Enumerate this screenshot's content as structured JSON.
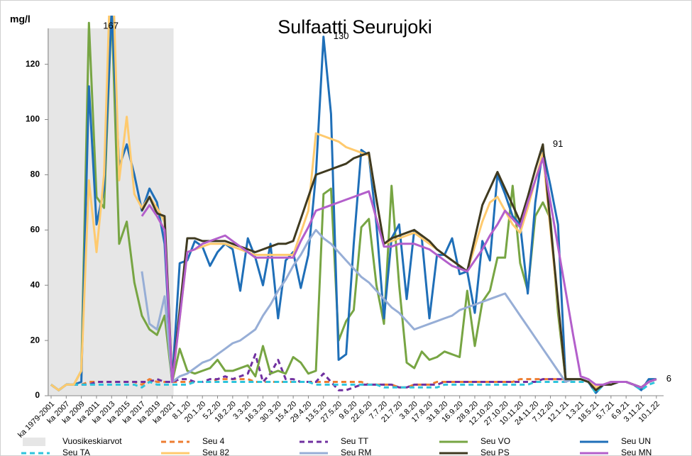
{
  "chart_data": {
    "type": "line",
    "title": "Sulfaatti Seurujoki",
    "y_label": "mg/l",
    "categories": [
      "ka 1979-2001",
      null,
      "ka 2007",
      null,
      "ka 2009",
      null,
      "ka 2011",
      null,
      "ka 2013",
      null,
      "ka 2015",
      null,
      "ka 2017",
      null,
      "ka 2019",
      null,
      "ka 2021",
      null,
      "8.1.20",
      null,
      "20.1.20",
      null,
      "5.2.20",
      null,
      "18.2.20",
      null,
      "3.3.20",
      null,
      "16.3.20",
      null,
      "30.3.20",
      null,
      "15.4.20",
      null,
      "29.4.20",
      null,
      "13.5.20",
      null,
      "27.5.20",
      null,
      "9.6.20",
      null,
      "22.6.20",
      null,
      "7.7.20",
      null,
      "21.7.20",
      null,
      "3.8.20",
      null,
      "17.8.20",
      null,
      "31.8.20",
      null,
      "16.9.20",
      null,
      "28.9.20",
      null,
      "12.10.20",
      null,
      "27.10.20",
      null,
      "10.11.20",
      null,
      "24.11.20",
      null,
      "7.12.20",
      null,
      "12.1.21",
      null,
      "1.3.21",
      null,
      "18.5.21",
      null,
      "5.7.21",
      null,
      "6.9.21",
      null,
      "3.11.21",
      null,
      "10.1.22"
    ],
    "ylim": [
      0,
      133
    ],
    "yticks": [
      0,
      20,
      40,
      60,
      80,
      100,
      120
    ],
    "shade": {
      "name": "Vuosikeskiarvot",
      "color": "#e6e6e6",
      "from": "ka 1979-2001",
      "to": "ka 2021"
    },
    "series": [
      {
        "name": "Seu 4",
        "color": "#ed7d31",
        "dashed": true,
        "values": [
          4,
          2,
          4,
          4,
          4,
          5,
          5,
          5,
          5,
          5,
          5,
          5,
          4,
          6,
          5,
          5,
          5,
          5,
          5,
          5,
          5,
          5,
          6,
          6,
          6,
          6,
          6,
          5,
          5,
          5,
          5,
          5,
          5,
          5,
          5,
          5,
          5,
          5,
          5,
          5,
          5,
          5,
          4,
          4,
          4,
          4,
          3,
          3,
          4,
          4,
          4,
          5,
          5,
          5,
          5,
          5,
          5,
          5,
          5,
          5,
          5,
          5,
          6,
          6,
          6,
          6,
          6,
          6,
          6,
          6,
          6,
          5,
          2,
          4,
          5,
          5,
          5,
          4,
          3,
          5,
          6
        ]
      },
      {
        "name": "Seu TT",
        "color": "#7030a0",
        "dashed": true,
        "values": [
          4,
          2,
          4,
          4,
          4,
          4,
          5,
          5,
          5,
          5,
          5,
          5,
          5,
          5,
          6,
          5,
          5,
          6,
          6,
          5,
          5,
          6,
          6,
          7,
          6,
          7,
          8,
          15,
          5,
          8,
          13,
          6,
          6,
          5,
          5,
          5,
          8,
          5,
          2,
          2,
          3,
          4,
          4,
          4,
          4,
          4,
          3,
          3,
          4,
          4,
          4,
          4,
          5,
          5,
          5,
          5,
          5,
          5,
          5,
          5,
          5,
          5,
          5,
          5,
          5,
          6,
          6,
          6,
          6,
          6,
          6,
          5,
          2,
          4,
          5,
          5,
          5,
          4,
          3,
          5,
          6
        ]
      },
      {
        "name": "Seu VO",
        "color": "#77a543",
        "dashed": false,
        "values": [
          4,
          2,
          4,
          4,
          9,
          135,
          72,
          68,
          140,
          55,
          63,
          41,
          29,
          24,
          22,
          29,
          5,
          17,
          9,
          8,
          9,
          10,
          13,
          9,
          9,
          10,
          11,
          7,
          18,
          8,
          9,
          8,
          14,
          12,
          8,
          9,
          73,
          75,
          20,
          27,
          31,
          61,
          64,
          40,
          26,
          76,
          40,
          12,
          10,
          16,
          13,
          14,
          16,
          15,
          14,
          38,
          18,
          34,
          38,
          50,
          50,
          76,
          48,
          38,
          65,
          70,
          64,
          30,
          6,
          6,
          6,
          5,
          2,
          4,
          4,
          5,
          5,
          4,
          3,
          5,
          6
        ]
      },
      {
        "name": "Seu UN",
        "color": "#1f6fb8",
        "dashed": false,
        "labels_at": [
          36
        ],
        "values": [
          4,
          2,
          4,
          4,
          5,
          112,
          62,
          75,
          140,
          83,
          91,
          80,
          67,
          75,
          70,
          55,
          5,
          48,
          49,
          56,
          54,
          47,
          52,
          55,
          53,
          38,
          57,
          50,
          40,
          55,
          28,
          49,
          52,
          39,
          51,
          80,
          130,
          102,
          13,
          15,
          55,
          89,
          87,
          62,
          28,
          57,
          62,
          35,
          60,
          57,
          28,
          51,
          51,
          57,
          44,
          45,
          30,
          56,
          49,
          80,
          73,
          65,
          62,
          37,
          70,
          89,
          76,
          62,
          6,
          6,
          6,
          5,
          1,
          4,
          4,
          5,
          5,
          4,
          2,
          6,
          6
        ]
      },
      {
        "name": "Seu TA",
        "color": "#2ec4dc",
        "dashed": true,
        "values": [
          4,
          2,
          4,
          4,
          4,
          4,
          4,
          4,
          4,
          4,
          4,
          4,
          3,
          5,
          4,
          4,
          4,
          4,
          4,
          5,
          5,
          5,
          5,
          5,
          5,
          5,
          5,
          5,
          5,
          5,
          5,
          5,
          5,
          5,
          5,
          4,
          4,
          4,
          4,
          4,
          4,
          4,
          4,
          4,
          3,
          3,
          3,
          3,
          3,
          3,
          3,
          3,
          4,
          4,
          4,
          4,
          4,
          4,
          4,
          4,
          4,
          4,
          4,
          4,
          5,
          5,
          5,
          5,
          5,
          5,
          5,
          5,
          1,
          4,
          4,
          5,
          5,
          4,
          2,
          4,
          5
        ]
      },
      {
        "name": "Seu 82",
        "color": "#ffca6e",
        "dashed": false,
        "labels_at": [
          8
        ],
        "values": [
          4,
          2,
          4,
          4,
          9,
          78,
          52,
          80,
          167,
          78,
          101,
          73,
          68,
          72,
          68,
          63,
          5,
          28,
          52,
          53,
          54,
          55,
          55,
          55,
          54,
          53,
          52,
          51,
          51,
          51,
          51,
          51,
          51,
          59,
          67,
          95,
          94,
          93,
          92,
          90,
          89,
          88,
          87,
          71,
          55,
          56,
          57,
          58,
          59,
          57,
          55,
          53,
          51,
          49,
          47,
          45,
          54,
          63,
          70,
          72,
          67,
          62,
          59,
          68,
          78,
          88,
          60,
          33,
          6,
          6,
          6,
          5,
          3,
          4,
          4,
          5,
          5,
          4,
          3,
          5,
          6
        ]
      },
      {
        "name": "Seu RM",
        "color": "#97aed6",
        "dashed": false,
        "values": [
          null,
          null,
          null,
          null,
          null,
          null,
          null,
          null,
          null,
          null,
          null,
          null,
          45,
          26,
          24,
          36,
          5,
          7,
          8,
          10,
          12,
          13,
          15,
          17,
          19,
          20,
          22,
          24,
          29,
          33,
          38,
          42,
          47,
          51,
          56,
          60,
          57,
          55,
          52,
          49,
          46,
          43,
          41,
          38,
          35,
          32,
          30,
          27,
          24,
          25,
          26,
          27,
          28,
          29,
          31,
          32,
          33,
          34,
          35,
          36,
          37,
          33,
          29,
          25,
          21,
          17,
          13,
          9,
          5,
          6,
          6,
          5,
          2,
          4,
          4,
          5,
          5,
          4,
          3,
          5,
          6
        ]
      },
      {
        "name": "Seu PS",
        "color": "#3f3a20",
        "dashed": false,
        "labels_at": [
          65,
          80
        ],
        "values": [
          null,
          null,
          null,
          null,
          null,
          null,
          null,
          null,
          null,
          null,
          null,
          null,
          67,
          72,
          66,
          65,
          5,
          31,
          57,
          57,
          56,
          56,
          56,
          56,
          55,
          54,
          53,
          52,
          53,
          54,
          55,
          55,
          56,
          64,
          72,
          80,
          81,
          82,
          83,
          84,
          86,
          87,
          88,
          71,
          55,
          57,
          58,
          59,
          60,
          58,
          56,
          53,
          51,
          49,
          47,
          45,
          57,
          69,
          75,
          81,
          75,
          69,
          63,
          72,
          82,
          91,
          62,
          34,
          6,
          6,
          6,
          5,
          2,
          4,
          4,
          5,
          5,
          4,
          3,
          5,
          6
        ]
      },
      {
        "name": "Seu MN",
        "color": "#b35fcb",
        "dashed": false,
        "values": [
          null,
          null,
          null,
          null,
          null,
          null,
          null,
          null,
          null,
          null,
          null,
          null,
          65,
          69,
          65,
          60,
          5,
          28,
          52,
          53,
          55,
          56,
          57,
          58,
          56,
          54,
          52,
          50,
          50,
          50,
          50,
          50,
          50,
          56,
          61,
          67,
          68,
          69,
          70,
          71,
          72,
          73,
          74,
          64,
          54,
          54,
          55,
          55,
          55,
          54,
          53,
          51,
          49,
          47,
          46,
          45,
          49,
          53,
          58,
          62,
          67,
          64,
          61,
          70,
          78,
          86,
          70,
          54,
          38,
          22,
          7,
          6,
          4,
          4,
          5,
          5,
          5,
          4,
          3,
          5,
          6
        ]
      }
    ]
  }
}
